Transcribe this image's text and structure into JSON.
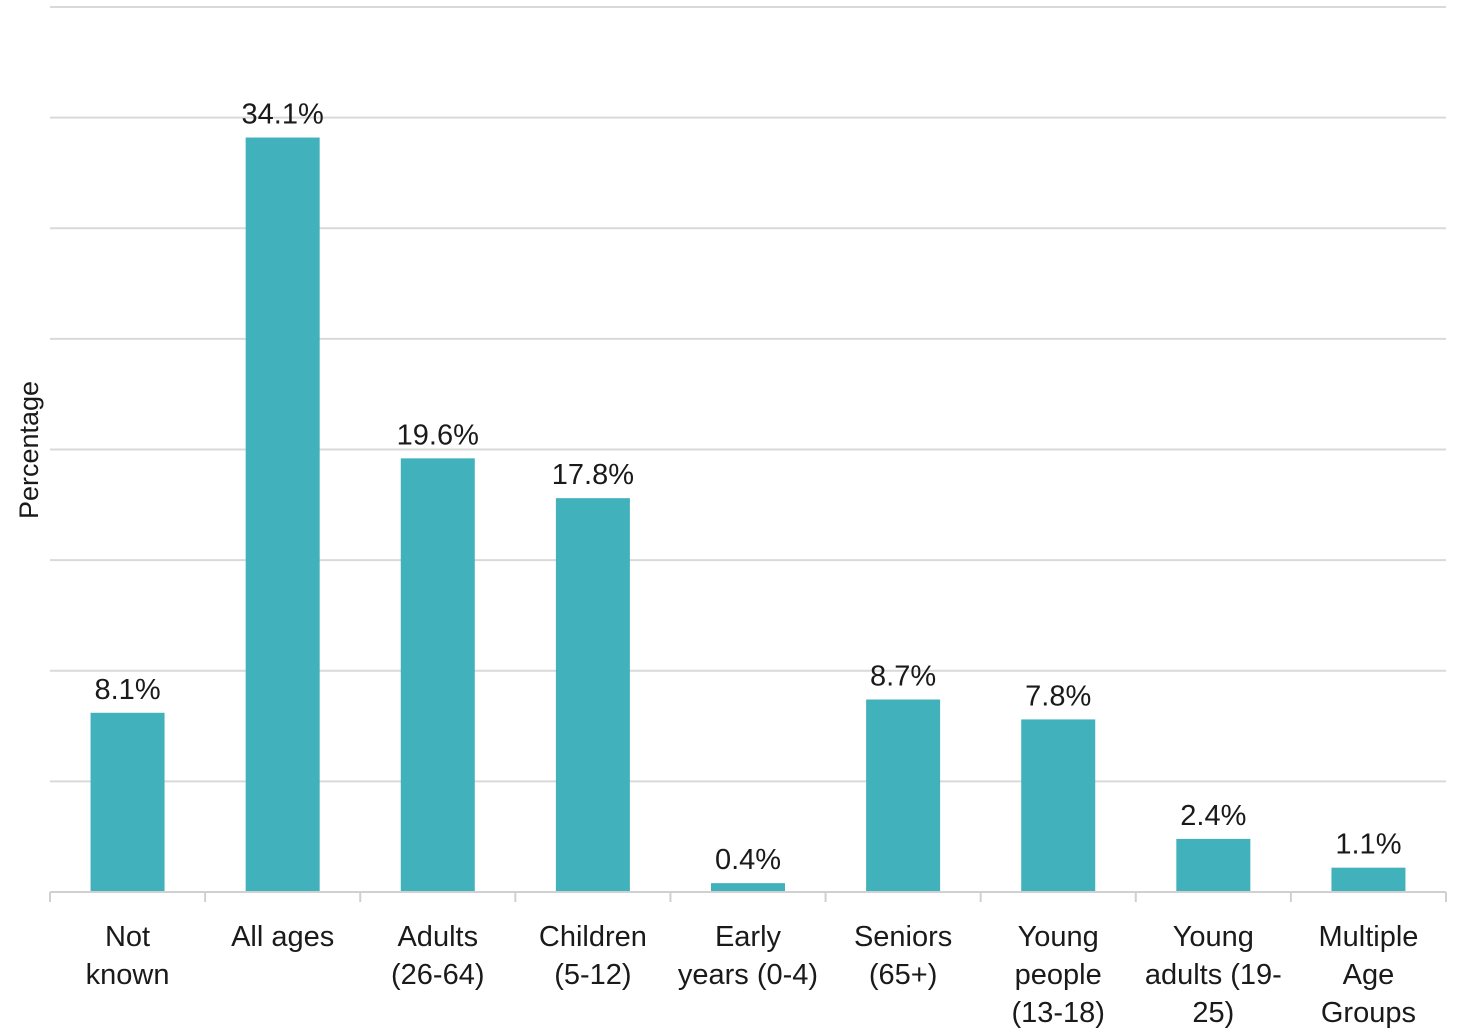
{
  "chart_data": {
    "type": "bar",
    "categories": [
      [
        "Not",
        "known"
      ],
      [
        "All ages"
      ],
      [
        "Adults",
        "(26-64)"
      ],
      [
        "Children",
        "(5-12)"
      ],
      [
        "Early",
        "years (0-4)"
      ],
      [
        "Seniors",
        "(65+)"
      ],
      [
        "Young",
        "people",
        "(13-18)"
      ],
      [
        "Young",
        "adults (19-",
        "25)"
      ],
      [
        "Multiple",
        "Age",
        "Groups"
      ]
    ],
    "values": [
      8.1,
      34.1,
      19.6,
      17.8,
      0.4,
      8.7,
      7.8,
      2.4,
      1.1
    ],
    "data_labels": [
      "8.1%",
      "34.1%",
      "19.6%",
      "17.8%",
      "0.4%",
      "8.7%",
      "7.8%",
      "2.4%",
      "1.1%"
    ],
    "title": "",
    "xlabel": "",
    "ylabel": "Percentage",
    "ylim": [
      0,
      40
    ],
    "grid": true,
    "bar_color": "#41b1bc"
  }
}
